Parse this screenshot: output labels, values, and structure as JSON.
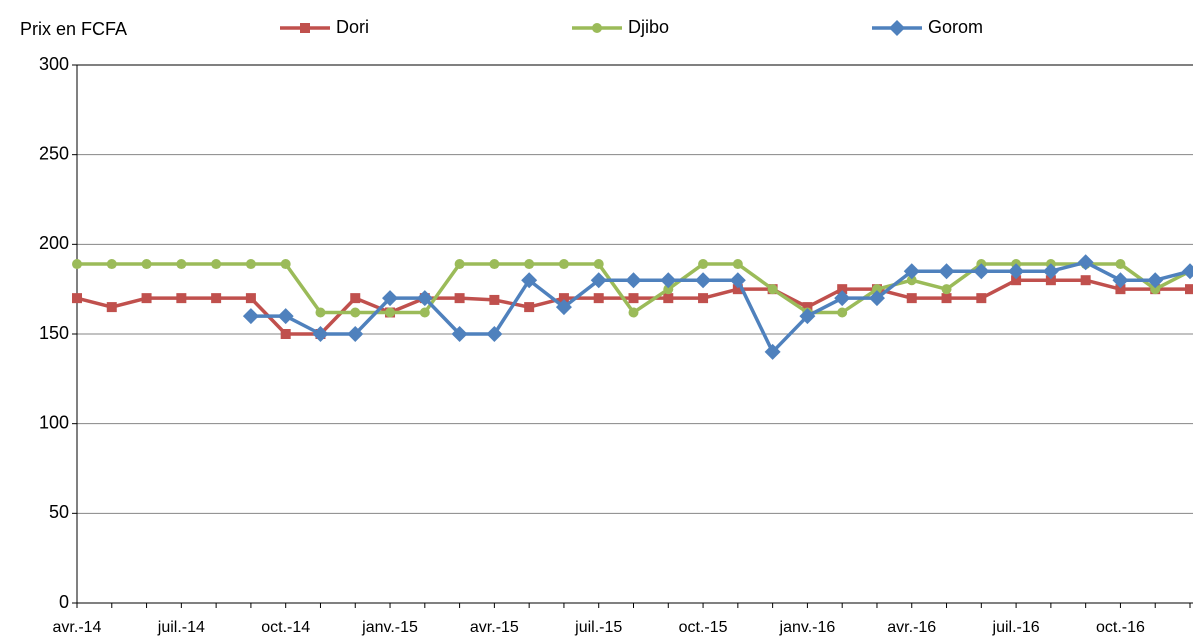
{
  "chart_data": {
    "type": "line",
    "y_label": "Prix en FCFA",
    "categories": [
      "avr.-14",
      null,
      null,
      "juil.-14",
      null,
      null,
      "oct.-14",
      null,
      null,
      "janv.-15",
      null,
      null,
      "avr.-15",
      null,
      null,
      "juil.-15",
      null,
      null,
      "oct.-15",
      null,
      null,
      "janv.-16",
      null,
      null,
      "avr.-16",
      null,
      null,
      "juil.-16",
      null,
      null,
      "oct.-16",
      null,
      null
    ],
    "series": [
      {
        "name": "Dori",
        "color": "#c0504d",
        "marker": "square",
        "values": [
          170,
          165,
          170,
          170,
          170,
          170,
          150,
          150,
          170,
          162,
          170,
          170,
          169,
          165,
          170,
          170,
          170,
          170,
          170,
          175,
          175,
          165,
          175,
          175,
          170,
          170,
          170,
          180,
          180,
          180,
          175,
          175,
          175
        ]
      },
      {
        "name": "Djibo",
        "color": "#9bbb59",
        "marker": "circle",
        "values": [
          189,
          189,
          189,
          189,
          189,
          189,
          189,
          162,
          162,
          162,
          162,
          189,
          189,
          189,
          189,
          189,
          162,
          175,
          189,
          189,
          175,
          162,
          162,
          175,
          180,
          175,
          189,
          189,
          189,
          189,
          189,
          175,
          185
        ]
      },
      {
        "name": "Gorom",
        "color": "#4f81bd",
        "marker": "diamond",
        "values": [
          null,
          null,
          null,
          null,
          null,
          160,
          160,
          150,
          150,
          170,
          170,
          150,
          150,
          180,
          165,
          180,
          180,
          180,
          180,
          180,
          140,
          160,
          170,
          170,
          185,
          185,
          185,
          185,
          185,
          190,
          180,
          180,
          185
        ]
      }
    ],
    "ylim": [
      0,
      300
    ],
    "yticks": [
      0,
      50,
      100,
      150,
      200,
      250,
      300
    ],
    "grid": true
  }
}
